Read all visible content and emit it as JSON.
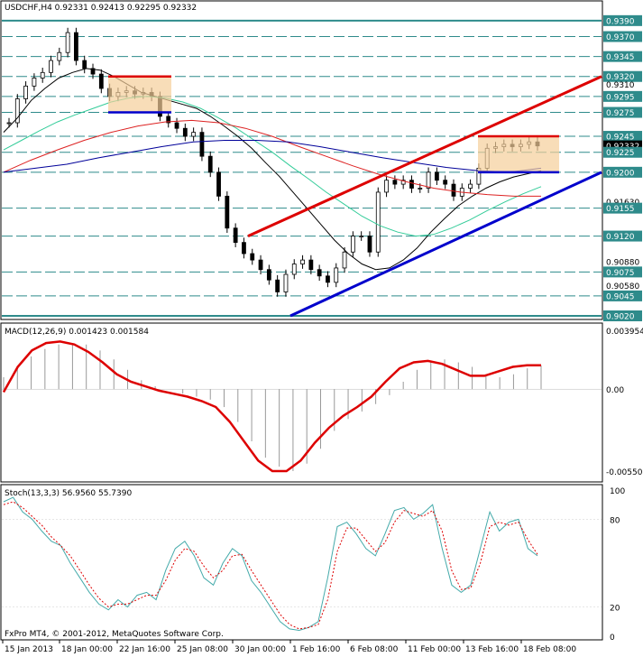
{
  "window": {
    "symbol_title": "USDCHF,H4  0.92331 0.92413 0.92295 0.92332",
    "watermark": "FxPro MT4, © 2001-2012, MetaQuotes Software Corp."
  },
  "chart_data": [
    {
      "type": "line",
      "panel": "price",
      "title": "USDCHF,H4  0.92331 0.92413 0.92295 0.92332",
      "ylim": [
        0.902,
        0.94
      ],
      "x_labels": [
        "15 Jan 2013",
        "18 Jan 00:00",
        "22 Jan 16:00",
        "25 Jan 08:00",
        "30 Jan 00:00",
        "1 Feb 16:00",
        "6 Feb 08:00",
        "11 Feb 00:00",
        "13 Feb 16:00",
        "18 Feb 08:00"
      ],
      "y_ticks": [
        {
          "value": 0.939,
          "boxed": true
        },
        {
          "value": 0.937,
          "boxed": true
        },
        {
          "value": 0.9345,
          "boxed": true
        },
        {
          "value": 0.932,
          "boxed": true
        },
        {
          "value": 0.931,
          "boxed": false
        },
        {
          "value": 0.9295,
          "boxed": true
        },
        {
          "value": 0.9275,
          "boxed": true
        },
        {
          "value": 0.9245,
          "boxed": true
        },
        {
          "value": 0.9233,
          "boxed": true,
          "current": true,
          "label": "0.92332"
        },
        {
          "value": 0.9225,
          "boxed": true
        },
        {
          "value": 0.92,
          "boxed": true
        },
        {
          "value": 0.9163,
          "boxed": false,
          "label": "0.91630"
        },
        {
          "value": 0.9155,
          "boxed": true
        },
        {
          "value": 0.912,
          "boxed": true
        },
        {
          "value": 0.9088,
          "boxed": false,
          "label": "0.90880"
        },
        {
          "value": 0.9075,
          "boxed": true
        },
        {
          "value": 0.9058,
          "boxed": false,
          "label": "0.90580"
        },
        {
          "value": 0.9045,
          "boxed": true
        },
        {
          "value": 0.902,
          "boxed": true
        }
      ],
      "horizontal_levels": [
        0.939,
        0.937,
        0.9345,
        0.932,
        0.9295,
        0.9275,
        0.9245,
        0.9225,
        0.92,
        0.9155,
        0.912,
        0.9075,
        0.9045,
        0.902
      ],
      "price_close": [
        0.9262,
        0.9292,
        0.9308,
        0.9318,
        0.9325,
        0.934,
        0.935,
        0.9375,
        0.934,
        0.933,
        0.9323,
        0.9305,
        0.9295,
        0.93,
        0.9302,
        0.9298,
        0.93,
        0.9295,
        0.927,
        0.9262,
        0.9255,
        0.9245,
        0.925,
        0.922,
        0.92,
        0.917,
        0.913,
        0.9112,
        0.9098,
        0.909,
        0.9078,
        0.9065,
        0.905,
        0.9072,
        0.9085,
        0.909,
        0.9078,
        0.907,
        0.9062,
        0.908,
        0.91,
        0.912,
        0.912,
        0.91,
        0.9175,
        0.919,
        0.9185,
        0.919,
        0.918,
        0.918,
        0.92,
        0.919,
        0.9185,
        0.917,
        0.918,
        0.9185,
        0.9205,
        0.923,
        0.9232,
        0.9235,
        0.9232,
        0.9235,
        0.9238,
        0.9233
      ],
      "series": [
        {
          "name": "MA black",
          "color": "#000000",
          "values": [
            0.925,
            0.9268,
            0.929,
            0.9305,
            0.9318,
            0.9325,
            0.933,
            0.9328,
            0.932,
            0.931,
            0.93,
            0.9295,
            0.929,
            0.9285,
            0.928,
            0.927,
            0.9258,
            0.9245,
            0.923,
            0.9212,
            0.9195,
            0.9175,
            0.9155,
            0.9135,
            0.9115,
            0.9098,
            0.9085,
            0.9078,
            0.908,
            0.909,
            0.9105,
            0.9125,
            0.9142,
            0.9158,
            0.917,
            0.918,
            0.9188,
            0.9194,
            0.9198,
            0.9202
          ]
        },
        {
          "name": "MA green",
          "color": "#33cc99",
          "values": [
            0.9228,
            0.924,
            0.9252,
            0.9263,
            0.9272,
            0.928,
            0.9288,
            0.9293,
            0.9295,
            0.9293,
            0.9288,
            0.928,
            0.9268,
            0.9255,
            0.924,
            0.9225,
            0.9208,
            0.9192,
            0.9175,
            0.916,
            0.9145,
            0.9133,
            0.9125,
            0.912,
            0.9122,
            0.913,
            0.914,
            0.9152,
            0.9163,
            0.9173,
            0.9182
          ]
        },
        {
          "name": "MA red",
          "color": "#dd2222",
          "values": [
            0.92,
            0.9215,
            0.9228,
            0.924,
            0.925,
            0.9258,
            0.9263,
            0.9265,
            0.9262,
            0.9255,
            0.9245,
            0.9232,
            0.922,
            0.9208,
            0.9197,
            0.9188,
            0.918,
            0.9175,
            0.9172,
            0.917,
            0.917
          ]
        },
        {
          "name": "MA blue",
          "color": "#000099",
          "values": [
            0.92,
            0.9205,
            0.921,
            0.9218,
            0.9225,
            0.9232,
            0.9238,
            0.924,
            0.924,
            0.9238,
            0.9232,
            0.9225,
            0.9218,
            0.9212,
            0.9206,
            0.9202,
            0.92,
            0.9205
          ]
        }
      ],
      "trendlines": [
        {
          "color": "#dd0000",
          "from": [
            0.912
          ],
          "to": [
            0.932
          ]
        },
        {
          "color": "#0000cc",
          "from": [
            0.902
          ],
          "to": [
            0.92
          ]
        }
      ]
    },
    {
      "type": "bar",
      "panel": "macd",
      "title": "MACD(12,26,9) 0.001423 0.001584",
      "ylim": [
        -0.0055,
        0.003954
      ],
      "y_ticks": [
        "0.003954",
        "0.00",
        "-0.00550"
      ],
      "histogram": [
        0.0008,
        0.0015,
        0.0022,
        0.0027,
        0.003,
        0.0031,
        0.003,
        0.0026,
        0.002,
        0.0013,
        0.0006,
        0.0002,
        0.0,
        -0.0003,
        -0.0005,
        -0.0007,
        -0.0012,
        -0.0022,
        -0.0035,
        -0.0046,
        -0.0052,
        -0.0055,
        -0.005,
        -0.004,
        -0.0028,
        -0.002,
        -0.0015,
        -0.001,
        -0.0004,
        0.0005,
        0.0013,
        0.0019,
        0.002,
        0.0018,
        0.0015,
        0.001,
        0.0008,
        0.001,
        0.0014,
        0.0016
      ],
      "signal": [
        -0.0002,
        0.0015,
        0.0026,
        0.0031,
        0.0032,
        0.003,
        0.0025,
        0.0018,
        0.001,
        0.0005,
        0.0002,
        -0.0001,
        -0.0003,
        -0.0005,
        -0.0008,
        -0.0012,
        -0.0022,
        -0.0035,
        -0.0048,
        -0.0055,
        -0.0055,
        -0.0048,
        -0.0036,
        -0.0026,
        -0.0018,
        -0.0012,
        -0.0005,
        0.0005,
        0.0014,
        0.0018,
        0.0019,
        0.0017,
        0.0013,
        0.0009,
        0.0009,
        0.0012,
        0.0015,
        0.0016,
        0.0016
      ],
      "series": [
        {
          "name": "MACD(12,26,9)",
          "color": "#dd0000"
        }
      ]
    },
    {
      "type": "line",
      "panel": "stoch",
      "title": "Stoch(13,3,3) 56.9560 55.7390",
      "ylim": [
        0,
        100
      ],
      "y_ticks": [
        "100",
        "80",
        "20",
        "0"
      ],
      "main": [
        92,
        95,
        85,
        80,
        72,
        65,
        62,
        50,
        40,
        30,
        22,
        18,
        25,
        20,
        28,
        30,
        25,
        45,
        60,
        65,
        55,
        40,
        35,
        50,
        60,
        55,
        38,
        30,
        20,
        10,
        5,
        4,
        6,
        10,
        40,
        75,
        78,
        70,
        60,
        55,
        70,
        86,
        88,
        80,
        84,
        90,
        60,
        35,
        30,
        35,
        60,
        85,
        72,
        78,
        80,
        60,
        55
      ],
      "signal": [
        90,
        92,
        88,
        82,
        76,
        68,
        62,
        55,
        45,
        35,
        26,
        20,
        22,
        22,
        25,
        28,
        28,
        38,
        52,
        60,
        58,
        48,
        40,
        45,
        55,
        56,
        45,
        35,
        25,
        15,
        8,
        5,
        6,
        8,
        25,
        58,
        74,
        74,
        66,
        58,
        64,
        78,
        86,
        84,
        82,
        86,
        72,
        45,
        32,
        33,
        50,
        75,
        78,
        76,
        78,
        66,
        56
      ],
      "series": [
        {
          "name": "main",
          "color": "#44aaaa"
        },
        {
          "name": "signal",
          "color": "#dd0000"
        }
      ]
    }
  ]
}
